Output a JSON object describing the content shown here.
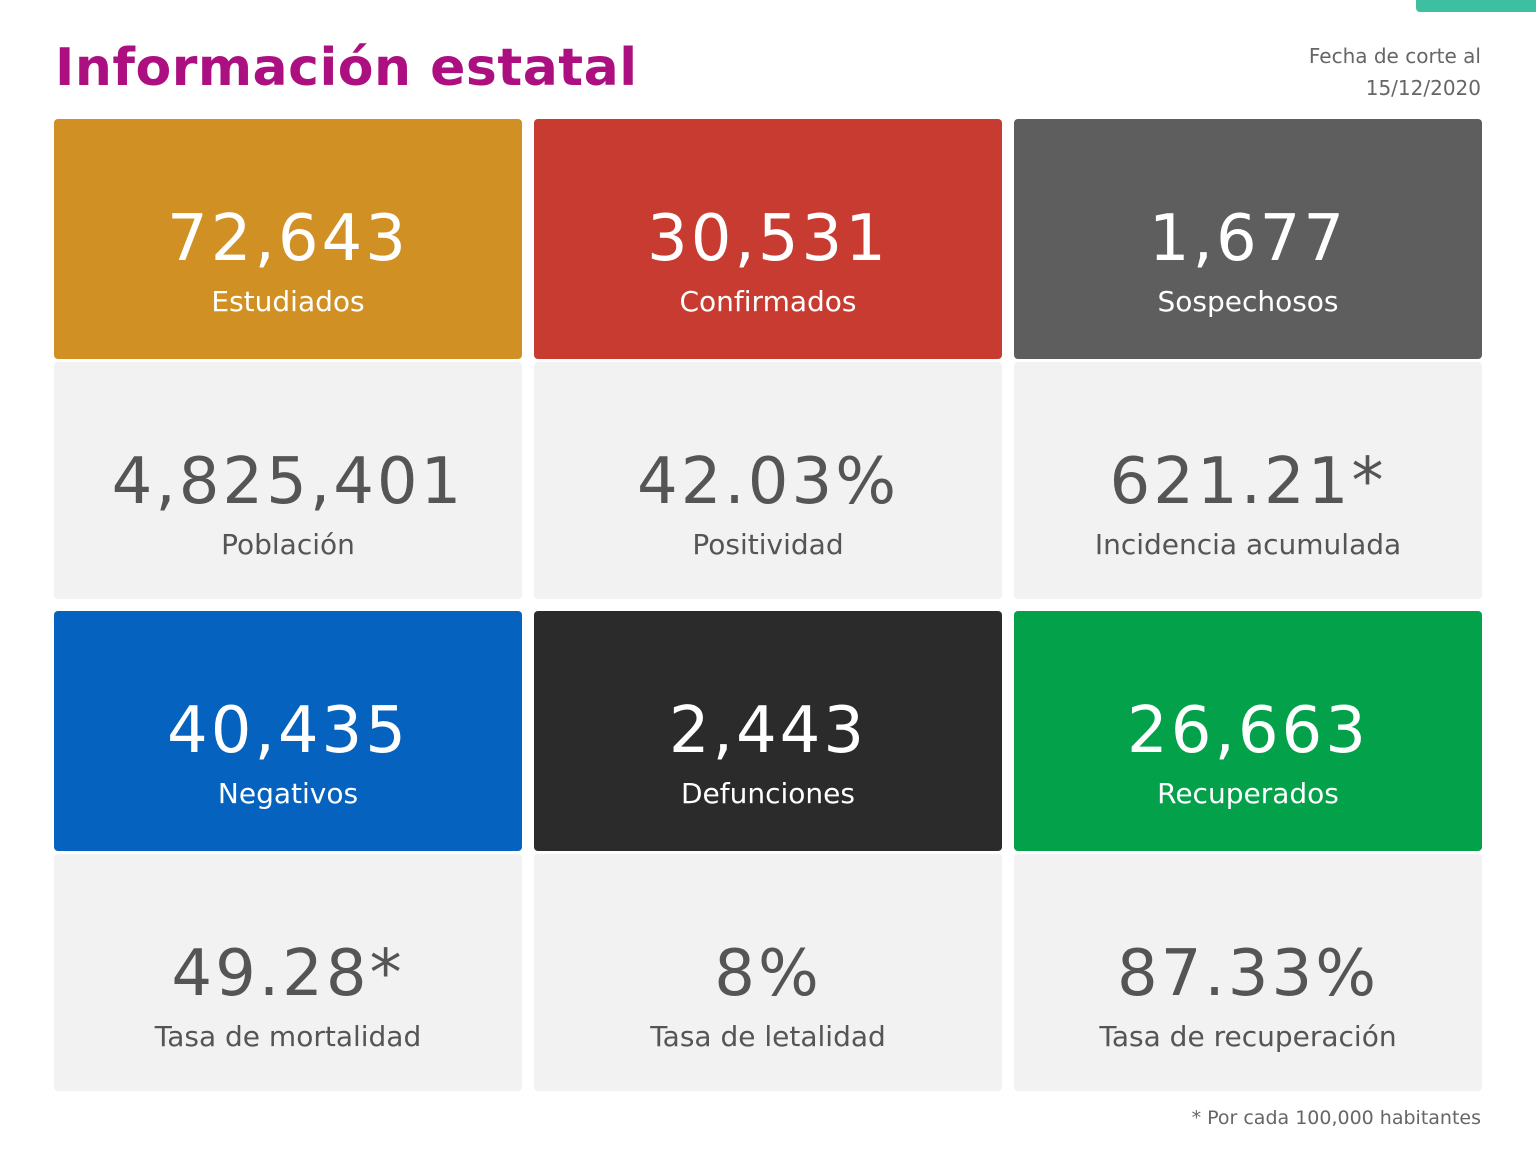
{
  "header": {
    "title": "Información estatal",
    "date_label": "Fecha de corte al",
    "date": "15/12/2020"
  },
  "cards": [
    {
      "value": "72,643",
      "label": "Estudiados"
    },
    {
      "value": "30,531",
      "label": "Confirmados"
    },
    {
      "value": "1,677",
      "label": "Sospechosos"
    },
    {
      "value": "4,825,401",
      "label": "Población"
    },
    {
      "value": "42.03%",
      "label": "Positividad"
    },
    {
      "value": "621.21*",
      "label": "Incidencia acumulada"
    },
    {
      "value": "40,435",
      "label": "Negativos"
    },
    {
      "value": "2,443",
      "label": "Defunciones"
    },
    {
      "value": "26,663",
      "label": "Recuperados"
    },
    {
      "value": "49.28*",
      "label": "Tasa de mortalidad"
    },
    {
      "value": "8%",
      "label": "Tasa de letalidad"
    },
    {
      "value": "87.33%",
      "label": "Tasa de recuperación"
    }
  ],
  "footnote": "* Por cada 100,000 habitantes"
}
